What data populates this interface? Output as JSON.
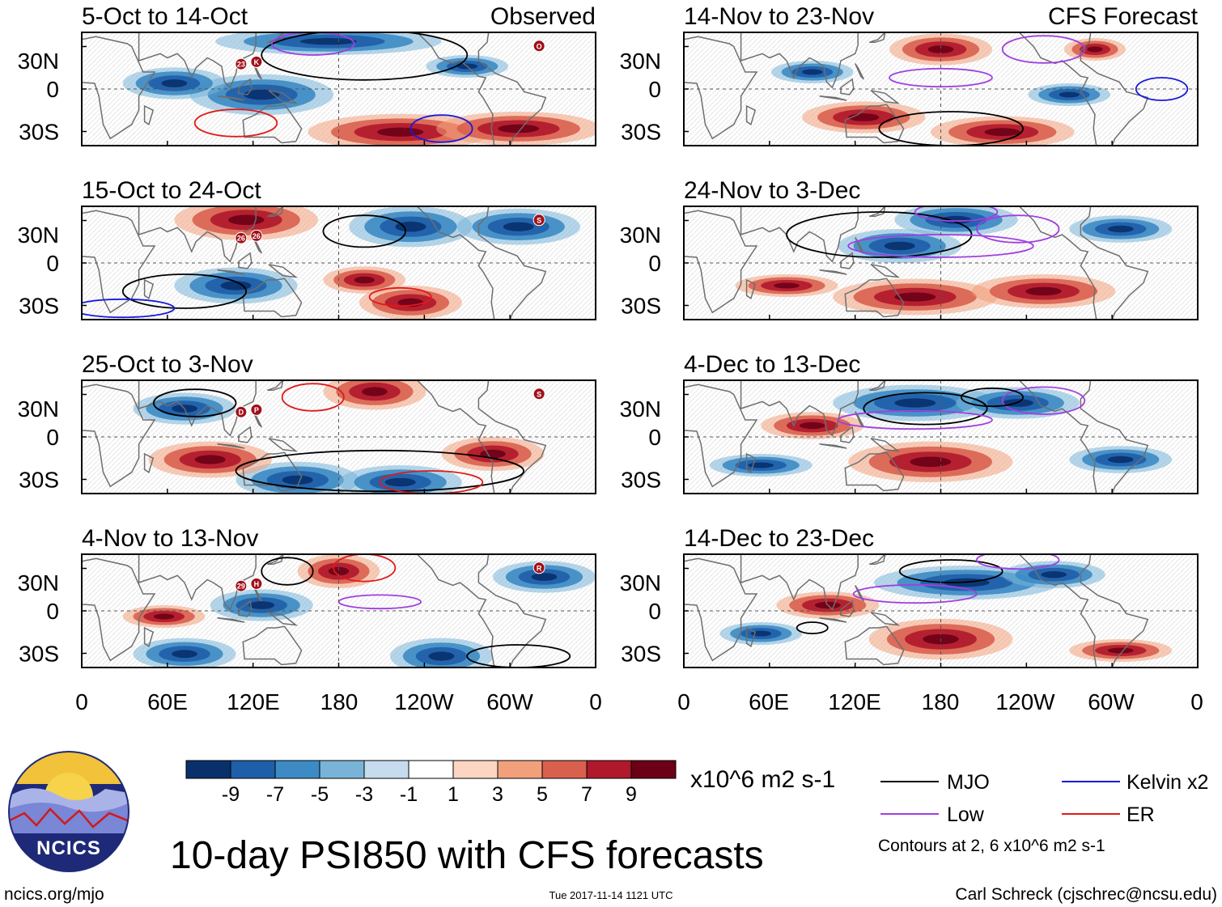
{
  "page_title": "10-day PSI850 with CFS forecasts",
  "chart_data": {
    "type": "heatmap",
    "title": "10-day PSI850 with CFS forecasts",
    "variable": "PSI850",
    "units": "x10^6 m2 s-1",
    "column_labels": {
      "left": "Observed",
      "right": "CFS Forecast"
    },
    "panels": [
      {
        "period": "5-Oct to 14-Oct",
        "source": "Observed",
        "storms": [
          "23",
          "K",
          "O"
        ]
      },
      {
        "period": "15-Oct to 24-Oct",
        "source": "Observed",
        "storms": [
          "26",
          "26",
          "S"
        ]
      },
      {
        "period": "25-Oct to 3-Nov",
        "source": "Observed",
        "storms": [
          "D",
          "P",
          "S"
        ]
      },
      {
        "period": "4-Nov to 13-Nov",
        "source": "Observed",
        "storms": [
          "29",
          "H",
          "R"
        ]
      },
      {
        "period": "14-Nov to 23-Nov",
        "source": "CFS Forecast",
        "storms": []
      },
      {
        "period": "24-Nov to 3-Dec",
        "source": "CFS Forecast",
        "storms": []
      },
      {
        "period": "4-Dec to 13-Dec",
        "source": "CFS Forecast",
        "storms": []
      },
      {
        "period": "14-Dec to 23-Dec",
        "source": "CFS Forecast",
        "storms": []
      }
    ],
    "y_ticks": [
      "30N",
      "0",
      "30S"
    ],
    "x_ticks": [
      "0",
      "60E",
      "120E",
      "180",
      "120W",
      "60W",
      "0"
    ],
    "longitude_range": [
      0,
      360
    ],
    "latitude_range": [
      -40,
      40
    ],
    "colorbar": {
      "tick_labels": [
        "-9",
        "-7",
        "-5",
        "-3",
        "-1",
        "1",
        "3",
        "5",
        "7",
        "9"
      ],
      "levels": [
        -9,
        -7,
        -5,
        -3,
        -1,
        1,
        3,
        5,
        7,
        9
      ],
      "colors": [
        "#08306b",
        "#1f5ea8",
        "#3c8bc4",
        "#79b4d8",
        "#c6dcee",
        "#ffffff",
        "#fcd6c2",
        "#f2a07c",
        "#d9604f",
        "#b0182b",
        "#6b0016"
      ],
      "units_label": "x10^6 m2 s-1"
    },
    "legend": [
      {
        "label": "MJO",
        "color": "#000000"
      },
      {
        "label": "Kelvin x2",
        "color": "#1a1adb"
      },
      {
        "label": "Low",
        "color": "#a040e0"
      },
      {
        "label": "ER",
        "color": "#e01a1a"
      }
    ],
    "contours_note": "Contours at 2, 6 x10^6 m2 s-1"
  },
  "logo": {
    "text": "NCICS"
  },
  "footer": {
    "url": "ncics.org/mjo",
    "timestamp": "Tue 2017-11-14 1121 UTC",
    "credit": "Carl Schreck (cjschrec@ncsu.edu)"
  }
}
